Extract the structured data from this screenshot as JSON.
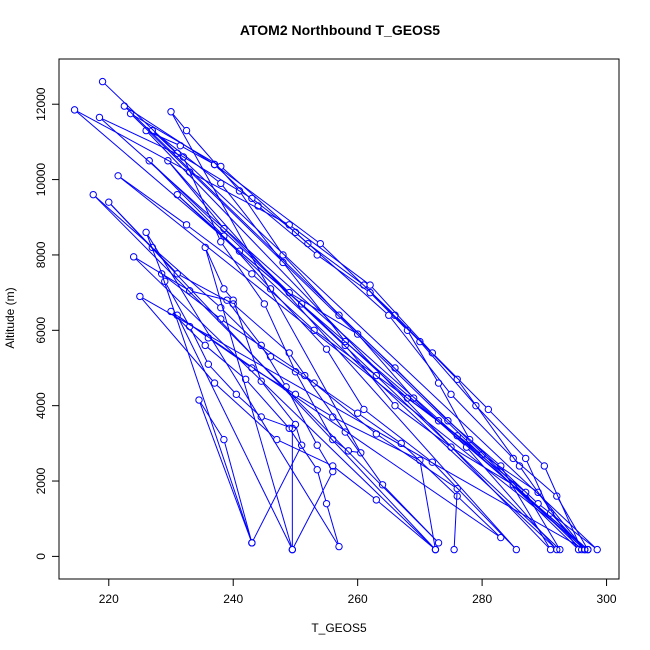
{
  "chart_data": {
    "type": "line",
    "title": "ATOM2 Northbound T_GEOS5",
    "xlabel": "T_GEOS5",
    "ylabel": "Altitude (m)",
    "xlim": [
      212,
      302
    ],
    "ylim": [
      -600,
      13200
    ],
    "x_ticks": [
      220,
      240,
      260,
      280,
      300
    ],
    "y_ticks": [
      0,
      2000,
      4000,
      6000,
      8000,
      10000,
      12000
    ],
    "grid": false,
    "marker": "open-circle",
    "series": [
      {
        "values": [
          [
            219.0,
            12600
          ],
          [
            231.0,
            10700
          ],
          [
            243.0,
            9500
          ],
          [
            250.0,
            8600
          ],
          [
            265.0,
            6400
          ],
          [
            275.0,
            4300
          ],
          [
            285.0,
            2600
          ],
          [
            292.0,
            1600
          ],
          [
            297.0,
            180
          ],
          [
            214.5,
            11850
          ],
          [
            233.0,
            10200
          ],
          [
            249.0,
            8800
          ],
          [
            262.0,
            7200
          ],
          [
            272.0,
            5400
          ],
          [
            281.0,
            3900
          ],
          [
            290.0,
            2400
          ],
          [
            296.0,
            180
          ],
          [
            222.5,
            11950
          ],
          [
            237.0,
            10400
          ],
          [
            254.0,
            8300
          ],
          [
            266.0,
            6400
          ],
          [
            276.0,
            4700
          ],
          [
            286.0,
            2400
          ],
          [
            295.5,
            180
          ],
          [
            223.5,
            11750
          ],
          [
            238.0,
            10350
          ],
          [
            252.0,
            8300
          ],
          [
            261.0,
            7200
          ],
          [
            270.0,
            5700
          ],
          [
            279.0,
            4000
          ],
          [
            287.0,
            2600
          ],
          [
            291.0,
            1150
          ],
          [
            296.5,
            180
          ],
          [
            218.5,
            11650
          ],
          [
            232.0,
            10600
          ],
          [
            238.0,
            8350
          ],
          [
            245.0,
            6700
          ],
          [
            250.0,
            4900
          ],
          [
            256.0,
            3100
          ],
          [
            258.5,
            2800
          ],
          [
            260.5,
            2750
          ],
          [
            230.0,
            11800
          ],
          [
            232.5,
            11300
          ],
          [
            241.0,
            9700
          ],
          [
            248.0,
            8000
          ],
          [
            257.0,
            6400
          ],
          [
            266.0,
            5000
          ],
          [
            274.5,
            3600
          ],
          [
            283.0,
            2400
          ],
          [
            291.0,
            180
          ],
          [
            226.0,
            11300
          ],
          [
            231.5,
            10900
          ],
          [
            237.0,
            10400
          ],
          [
            244.0,
            9300
          ],
          [
            253.5,
            8000
          ],
          [
            262.0,
            7000
          ],
          [
            268.0,
            6000
          ],
          [
            273.0,
            4600
          ],
          [
            278.0,
            3100
          ],
          [
            289.0,
            1400
          ],
          [
            298.5,
            180
          ],
          [
            227.0,
            11300
          ],
          [
            238.0,
            9900
          ],
          [
            248.0,
            7800
          ],
          [
            258.0,
            5700
          ],
          [
            268.0,
            4200
          ],
          [
            276.0,
            3200
          ],
          [
            287.0,
            1700
          ],
          [
            292.5,
            180
          ],
          [
            226.5,
            10500
          ],
          [
            238.5,
            8500
          ],
          [
            246.0,
            7100
          ],
          [
            255.0,
            5500
          ],
          [
            261.0,
            3900
          ],
          [
            272.0,
            2500
          ],
          [
            285.5,
            180
          ],
          [
            229.5,
            10500
          ],
          [
            238.5,
            8700
          ],
          [
            249.0,
            7000
          ],
          [
            260.0,
            5900
          ],
          [
            269.0,
            4200
          ],
          [
            277.5,
            2900
          ],
          [
            292.0,
            180
          ],
          [
            231.0,
            9600
          ],
          [
            241.0,
            8100
          ],
          [
            251.0,
            6700
          ],
          [
            258.0,
            5600
          ],
          [
            266.0,
            4000
          ],
          [
            275.0,
            2900
          ],
          [
            285.0,
            1900
          ],
          [
            297.0,
            180
          ],
          [
            221.5,
            10100
          ],
          [
            232.5,
            8800
          ],
          [
            243.0,
            7500
          ],
          [
            253.0,
            6000
          ],
          [
            263.0,
            4800
          ],
          [
            273.0,
            3600
          ],
          [
            280.0,
            2700
          ],
          [
            289.0,
            1700
          ],
          [
            296.5,
            180
          ],
          [
            225.0,
            6900
          ],
          [
            237.0,
            4600
          ],
          [
            247.0,
            3100
          ],
          [
            256.0,
            2400
          ],
          [
            263.0,
            1500
          ],
          [
            272.5,
            180
          ],
          [
            220.0,
            9400
          ],
          [
            231.0,
            7500
          ],
          [
            240.0,
            6700
          ],
          [
            249.0,
            5400
          ],
          [
            258.0,
            3300
          ],
          [
            264.0,
            1900
          ],
          [
            273.0,
            360
          ],
          [
            217.5,
            9600
          ],
          [
            227.0,
            8200
          ],
          [
            238.0,
            6600
          ],
          [
            246.0,
            5300
          ],
          [
            253.0,
            4600
          ],
          [
            260.0,
            3800
          ],
          [
            267.0,
            3000
          ],
          [
            276.0,
            1600
          ],
          [
            283.0,
            500
          ],
          [
            230.0,
            6500
          ],
          [
            235.5,
            5600
          ],
          [
            242.0,
            4700
          ],
          [
            249.0,
            3400
          ],
          [
            253.5,
            2300
          ],
          [
            255.0,
            1400
          ],
          [
            257.0,
            260
          ],
          [
            226.0,
            8600
          ],
          [
            229.0,
            7300
          ],
          [
            233.0,
            6100
          ],
          [
            236.0,
            5100
          ],
          [
            240.5,
            4300
          ],
          [
            244.5,
            3700
          ],
          [
            249.5,
            3400
          ],
          [
            249.5,
            180
          ],
          [
            231.0,
            6400
          ],
          [
            236.0,
            5800
          ],
          [
            243.0,
            5000
          ],
          [
            250.0,
            4300
          ],
          [
            256.0,
            3700
          ],
          [
            270.0,
            2550
          ],
          [
            272.5,
            180
          ],
          [
            224.0,
            7950
          ],
          [
            233.0,
            7050
          ],
          [
            239.0,
            6800
          ],
          [
            244.5,
            5600
          ],
          [
            248.5,
            4500
          ],
          [
            253.5,
            2950
          ],
          [
            256.0,
            2250
          ],
          [
            249.5,
            180
          ],
          [
            235.5,
            8200
          ],
          [
            238.5,
            7100
          ],
          [
            240.0,
            6800
          ],
          [
            244.5,
            4650
          ],
          [
            250.0,
            3500
          ],
          [
            251.0,
            2950
          ],
          [
            243.0,
            360
          ],
          [
            234.5,
            4150
          ],
          [
            238.5,
            3100
          ],
          [
            243.0,
            360
          ],
          [
            228.5,
            7500
          ],
          [
            238.0,
            6300
          ],
          [
            251.5,
            4800
          ],
          [
            263.0,
            3250
          ],
          [
            276.0,
            1800
          ],
          [
            275.5,
            180
          ]
        ]
      }
    ]
  }
}
